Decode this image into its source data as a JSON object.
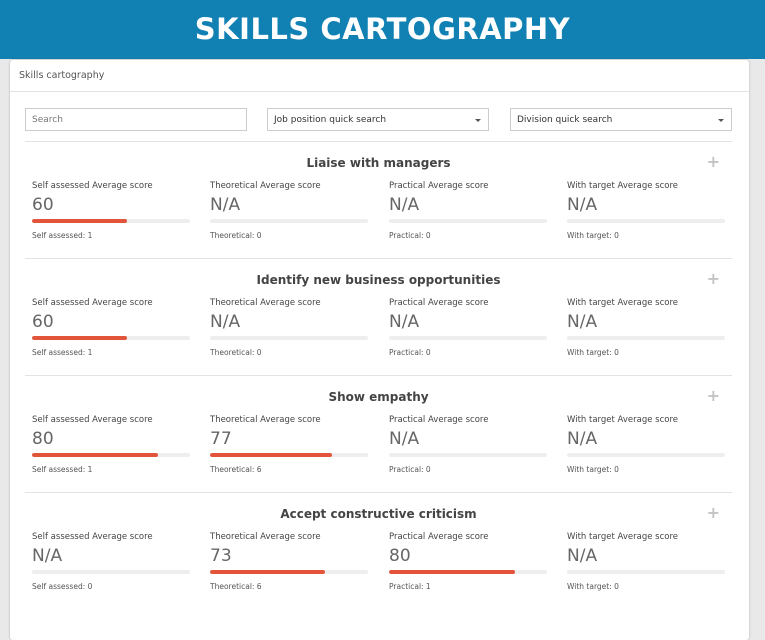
{
  "banner": {
    "title": "SKILLS CARTOGRAPHY"
  },
  "panel": {
    "title": "Skills cartography"
  },
  "filters": {
    "search_placeholder": "Search",
    "job_position": "Job position quick search",
    "division": "Division quick search"
  },
  "colors": {
    "banner": "#1180b3",
    "bar_fill": "#e2553a",
    "bar_track": "#eeeeee"
  },
  "skills": [
    {
      "title": "Liaise with managers",
      "metrics": [
        {
          "label": "Self assessed Average score",
          "value": "60",
          "percent": 60,
          "count": "Self assessed: 1"
        },
        {
          "label": "Theoretical Average score",
          "value": "N/A",
          "percent": 0,
          "count": "Theoretical: 0"
        },
        {
          "label": "Practical Average score",
          "value": "N/A",
          "percent": 0,
          "count": "Practical: 0"
        },
        {
          "label": "With target Average score",
          "value": "N/A",
          "percent": 0,
          "count": "With target: 0"
        }
      ]
    },
    {
      "title": "Identify new business opportunities",
      "metrics": [
        {
          "label": "Self assessed Average score",
          "value": "60",
          "percent": 60,
          "count": "Self assessed: 1"
        },
        {
          "label": "Theoretical Average score",
          "value": "N/A",
          "percent": 0,
          "count": "Theoretical: 0"
        },
        {
          "label": "Practical Average score",
          "value": "N/A",
          "percent": 0,
          "count": "Practical: 0"
        },
        {
          "label": "With target Average score",
          "value": "N/A",
          "percent": 0,
          "count": "With target: 0"
        }
      ]
    },
    {
      "title": "Show empathy",
      "metrics": [
        {
          "label": "Self assessed Average score",
          "value": "80",
          "percent": 80,
          "count": "Self assessed: 1"
        },
        {
          "label": "Theoretical Average score",
          "value": "77",
          "percent": 77,
          "count": "Theoretical: 6"
        },
        {
          "label": "Practical Average score",
          "value": "N/A",
          "percent": 0,
          "count": "Practical: 0"
        },
        {
          "label": "With target Average score",
          "value": "N/A",
          "percent": 0,
          "count": "With target: 0"
        }
      ]
    },
    {
      "title": "Accept constructive criticism",
      "metrics": [
        {
          "label": "Self assessed Average score",
          "value": "N/A",
          "percent": 0,
          "count": "Self assessed: 0"
        },
        {
          "label": "Theoretical Average score",
          "value": "73",
          "percent": 73,
          "count": "Theoretical: 6"
        },
        {
          "label": "Practical Average score",
          "value": "80",
          "percent": 80,
          "count": "Practical: 1"
        },
        {
          "label": "With target Average score",
          "value": "N/A",
          "percent": 0,
          "count": "With target: 0"
        }
      ]
    }
  ]
}
